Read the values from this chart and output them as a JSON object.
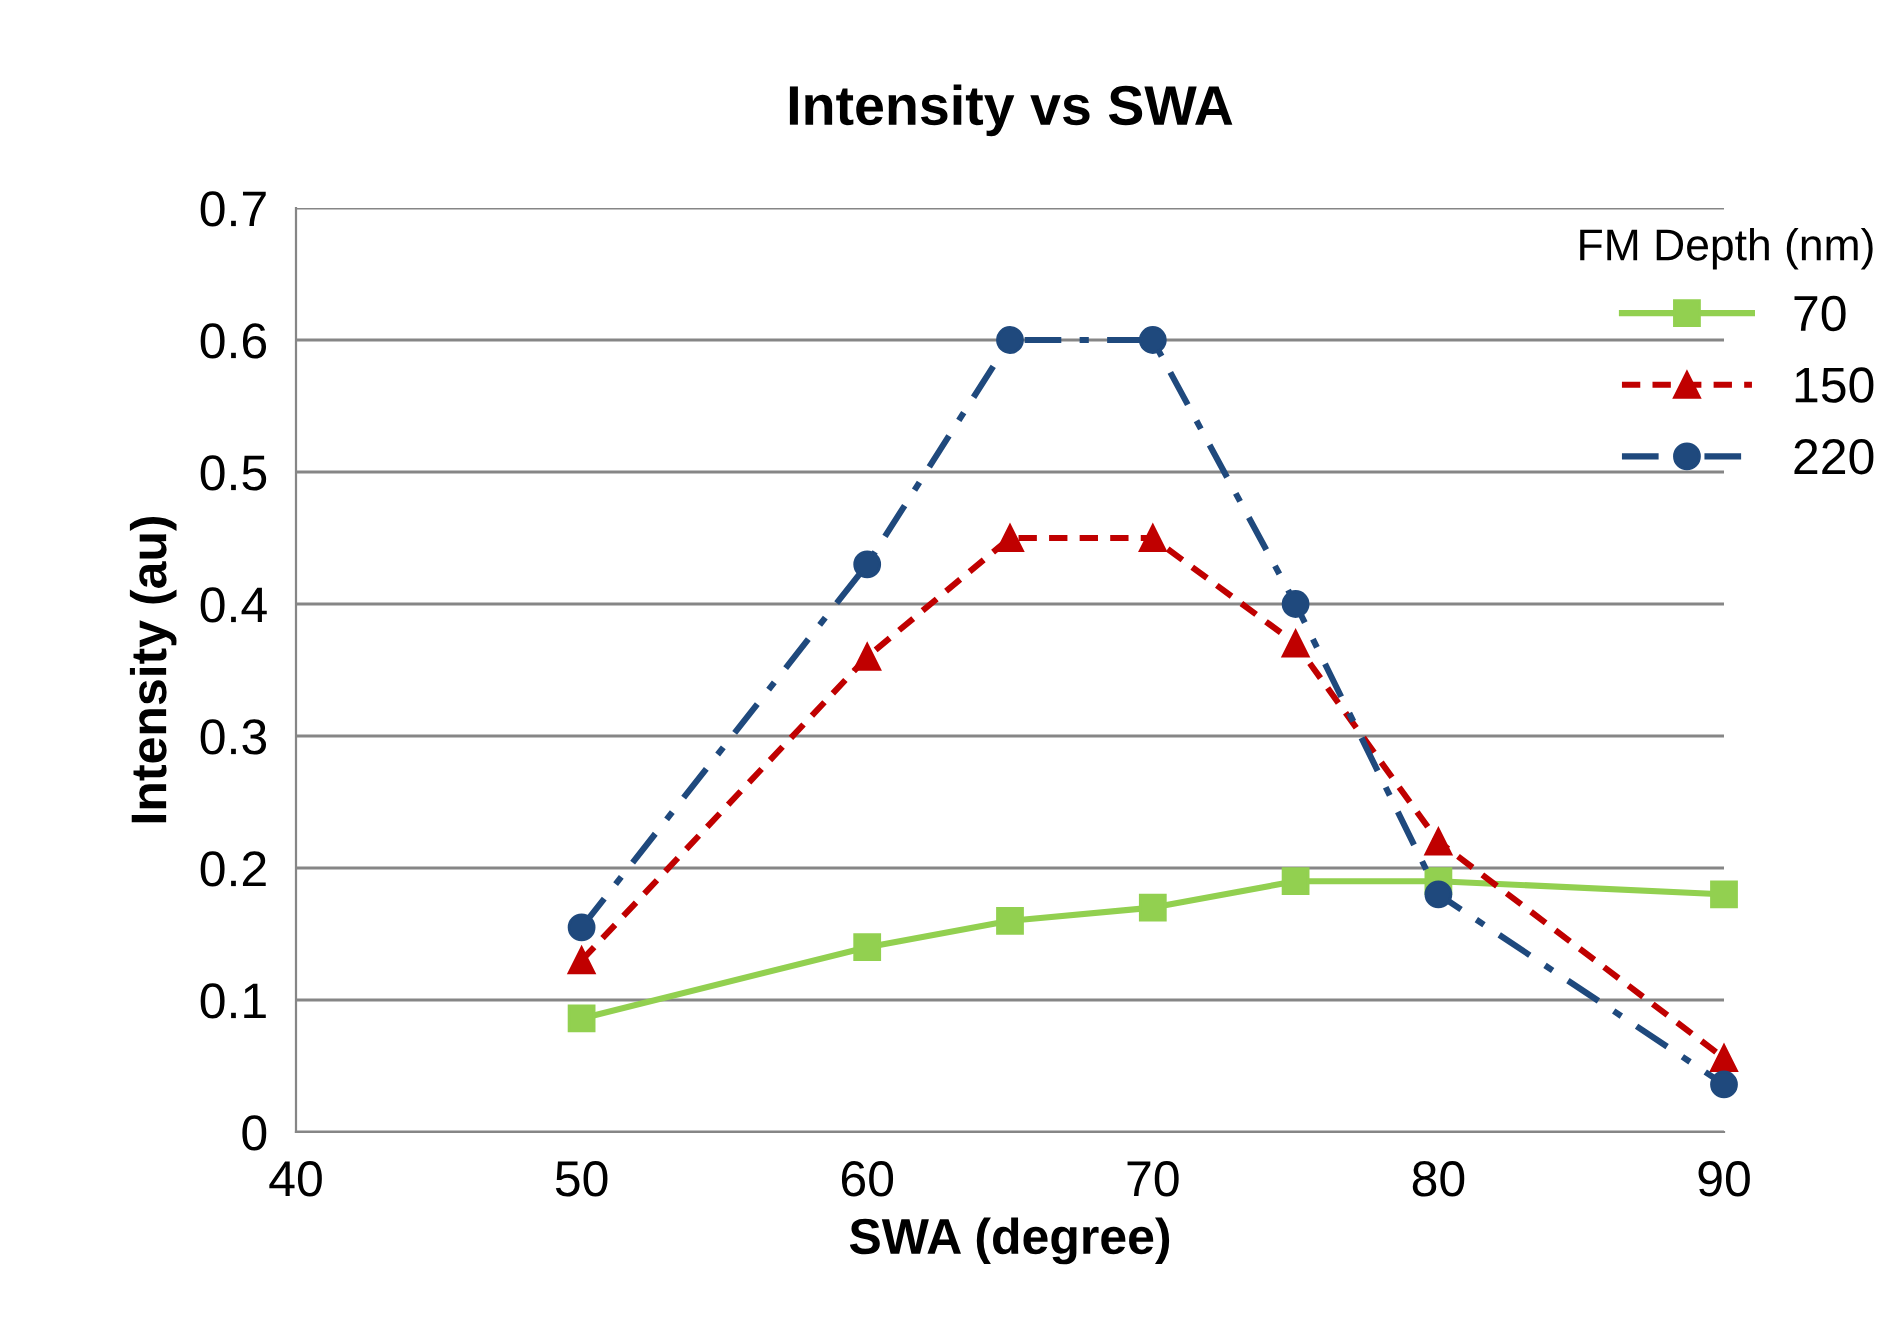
{
  "chart_data": {
    "type": "line",
    "title": "Intensity vs SWA",
    "xlabel": "SWA (degree)",
    "ylabel": "Intensity (au)",
    "legend_title": "FM Depth (nm)",
    "x": [
      50,
      60,
      65,
      70,
      75,
      80,
      90
    ],
    "series": [
      {
        "name": "70",
        "color": "#92d050",
        "marker": "square",
        "line_style": "solid",
        "values": [
          0.086,
          0.14,
          0.16,
          0.17,
          0.19,
          0.19,
          0.18
        ]
      },
      {
        "name": "150",
        "color": "#c00000",
        "marker": "triangle",
        "line_style": "dashed",
        "values": [
          0.13,
          0.36,
          0.45,
          0.45,
          0.37,
          0.22,
          0.056
        ]
      },
      {
        "name": "220",
        "color": "#1f497d",
        "marker": "circle",
        "line_style": "dashdot",
        "values": [
          0.155,
          0.43,
          0.6,
          0.6,
          0.4,
          0.18,
          0.036
        ]
      }
    ],
    "xlim": [
      40,
      90
    ],
    "xticks": [
      40,
      50,
      60,
      70,
      80,
      90
    ],
    "ylim": [
      0,
      0.7
    ],
    "yticks": [
      0,
      0.1,
      0.2,
      0.3,
      0.4,
      0.5,
      0.6,
      0.7
    ],
    "grid": "y",
    "legend": "top right"
  }
}
